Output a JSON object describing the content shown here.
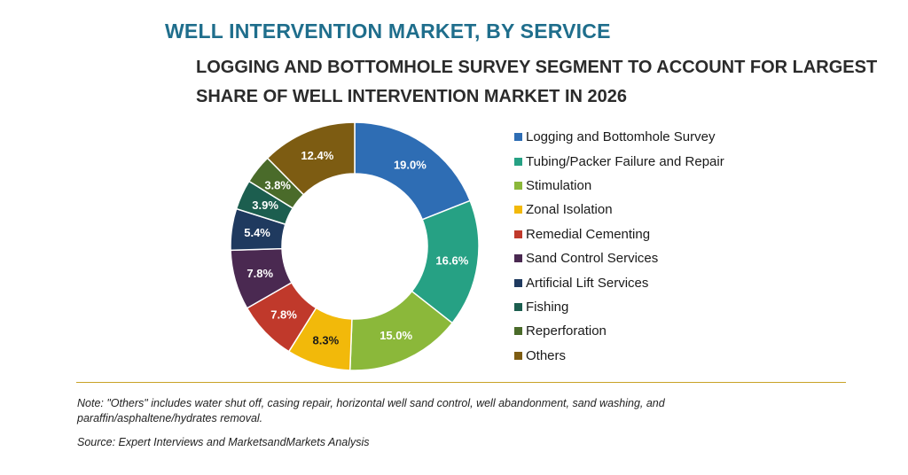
{
  "title": "WELL INTERVENTION MARKET, BY SERVICE",
  "subtitle": {
    "line1": "LOGGING AND BOTTOMHOLE SURVEY SEGMENT TO ACCOUNT FOR LARGEST",
    "line2": "SHARE OF WELL INTERVENTION MARKET IN 2026"
  },
  "chart_data": {
    "type": "pie",
    "donut": true,
    "categories": [
      "Logging and Bottomhole Survey",
      "Tubing/Packer Failure and Repair",
      "Stimulation",
      "Zonal Isolation",
      "Remedial Cementing",
      "Sand Control Services",
      "Artificial Lift Services",
      "Fishing",
      "Reperforation",
      "Others"
    ],
    "values": [
      19.0,
      16.6,
      15.0,
      8.3,
      7.8,
      7.8,
      5.4,
      3.9,
      3.8,
      12.4
    ],
    "data_labels": [
      "19.0%",
      "16.6%",
      "15.0%",
      "8.3%",
      "7.8%",
      "7.8%",
      "5.4%",
      "3.9%",
      "3.8%",
      "12.4%"
    ],
    "colors": [
      "#2e6db4",
      "#26a184",
      "#8bb83a",
      "#f2b90a",
      "#c0392b",
      "#4a2951",
      "#1f3a5f",
      "#1c5e4f",
      "#4a6b2a",
      "#7d5c12"
    ],
    "label_colors": [
      "#ffffff",
      "#ffffff",
      "#ffffff",
      "#1a1a1a",
      "#ffffff",
      "#ffffff",
      "#ffffff",
      "#ffffff",
      "#ffffff",
      "#ffffff"
    ],
    "legend_position": "right",
    "unit": "%"
  },
  "note": {
    "line1": "Note: \"Others\" includes water shut off, casing repair, horizontal well sand control, well abandonment, sand washing, and",
    "line2": "paraffin/asphaltene/hydrates removal."
  },
  "source": "Source: Expert Interviews and MarketsandMarkets Analysis"
}
